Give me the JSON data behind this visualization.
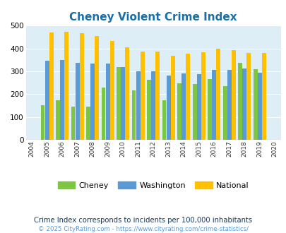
{
  "title": "Cheney Violent Crime Index",
  "years": [
    2004,
    2005,
    2006,
    2007,
    2008,
    2009,
    2010,
    2011,
    2012,
    2013,
    2014,
    2015,
    2016,
    2017,
    2018,
    2019,
    2020
  ],
  "cheney": [
    null,
    150,
    172,
    145,
    145,
    230,
    318,
    215,
    262,
    172,
    248,
    245,
    265,
    234,
    338,
    308,
    null
  ],
  "washington": [
    null,
    347,
    350,
    336,
    333,
    334,
    318,
    300,
    300,
    280,
    290,
    287,
    305,
    306,
    312,
    295,
    null
  ],
  "national": [
    null,
    469,
    474,
    467,
    455,
    432,
    405,
    387,
    387,
    367,
    376,
    383,
    398,
    394,
    380,
    380,
    null
  ],
  "cheney_color": "#7dc642",
  "washington_color": "#5b9bd5",
  "national_color": "#ffc000",
  "bg_color": "#ddeef6",
  "title_color": "#1a6fa8",
  "subtitle": "Crime Index corresponds to incidents per 100,000 inhabitants",
  "footer": "© 2025 CityRating.com - https://www.cityrating.com/crime-statistics/",
  "ylim": [
    0,
    500
  ],
  "yticks": [
    0,
    100,
    200,
    300,
    400,
    500
  ],
  "subtitle_color": "#1a3a5c",
  "footer_color": "#5b9bd5"
}
